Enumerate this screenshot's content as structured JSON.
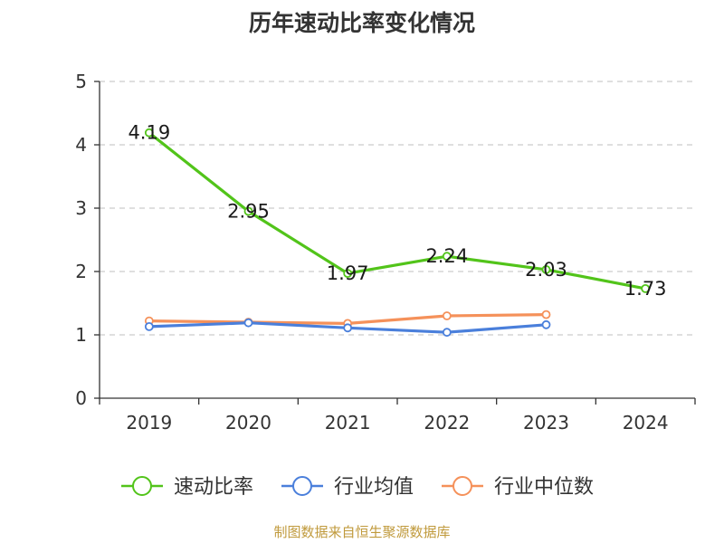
{
  "chart_data": {
    "type": "line",
    "title": "历年速动比率变化情况",
    "categories": [
      "2019",
      "2020",
      "2021",
      "2022",
      "2023",
      "2024"
    ],
    "ylim": [
      0,
      5
    ],
    "yticks": [
      0,
      1,
      2,
      3,
      4,
      5
    ],
    "grid": true,
    "legend_position": "bottom",
    "series": [
      {
        "name": "速动比率",
        "color": "#52c41a",
        "values": [
          4.19,
          2.95,
          1.97,
          2.24,
          2.03,
          1.73
        ],
        "show_labels": true
      },
      {
        "name": "行业均值",
        "color": "#4a7fdb",
        "values": [
          1.13,
          1.19,
          1.11,
          1.04,
          1.16,
          null
        ],
        "show_labels": false
      },
      {
        "name": "行业中位数",
        "color": "#f5915a",
        "values": [
          1.22,
          1.2,
          1.18,
          1.3,
          1.32,
          null
        ],
        "show_labels": false
      }
    ],
    "source": "制图数据来自恒生聚源数据库"
  }
}
